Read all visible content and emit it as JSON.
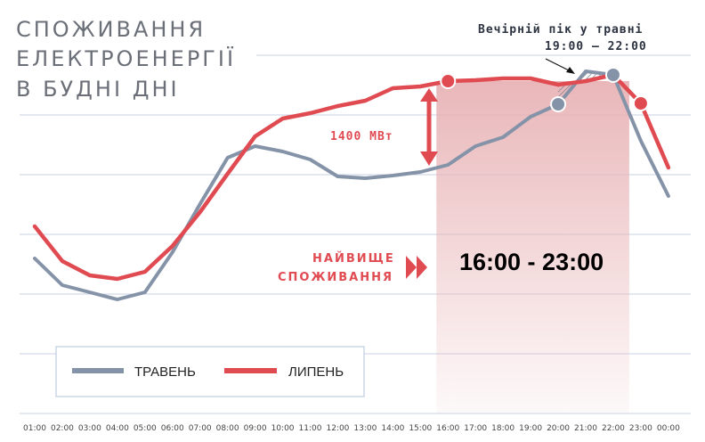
{
  "title_lines": [
    "СПОЖИВАННЯ",
    "ЕЛЕКТРОЕНЕРГІЇ",
    "В БУДНІ ДНІ"
  ],
  "colors": {
    "may": "#8593a8",
    "july": "#e04b52",
    "highlight": "#e8b3b6"
  },
  "annotations": {
    "evening_peak_line1": "Вечірній пік у травні",
    "evening_peak_line2": "19:00 – 22:00",
    "difference": "1400 МВт",
    "highest_line1": "НАЙВИЩЕ",
    "highest_line2": "СПОЖИВАННЯ",
    "highest_range": "16:00 - 23:00"
  },
  "chart_data": {
    "type": "line",
    "x": [
      "01:00",
      "02:00",
      "03:00",
      "04:00",
      "05:00",
      "06:00",
      "07:00",
      "08:00",
      "09:00",
      "10:00",
      "11:00",
      "12:00",
      "13:00",
      "14:00",
      "15:00",
      "16:00",
      "17:00",
      "18:00",
      "19:00",
      "20:00",
      "21:00",
      "22:00",
      "23:00",
      "00:00"
    ],
    "series": [
      {
        "name": "ТРАВЕНЬ",
        "values": [
          290,
          320,
          328,
          336,
          328,
          283,
          229,
          177,
          164,
          170,
          179,
          198,
          200,
          197,
          193,
          185,
          164,
          154,
          131,
          117,
          80,
          84,
          158,
          220
        ]
      },
      {
        "name": "ЛИПЕНЬ",
        "values": [
          254,
          293,
          309,
          313,
          305,
          276,
          238,
          195,
          153,
          133,
          127,
          119,
          113,
          99,
          97,
          91,
          90,
          88,
          88,
          95,
          91,
          84,
          116,
          188
        ]
      }
    ],
    "value_scale": "relative (inverted pixel estimate, no axis labels printed)",
    "highlight_range": [
      "16:00",
      "23:00"
    ],
    "grid": "horizontal",
    "legend": "bottom-left"
  }
}
